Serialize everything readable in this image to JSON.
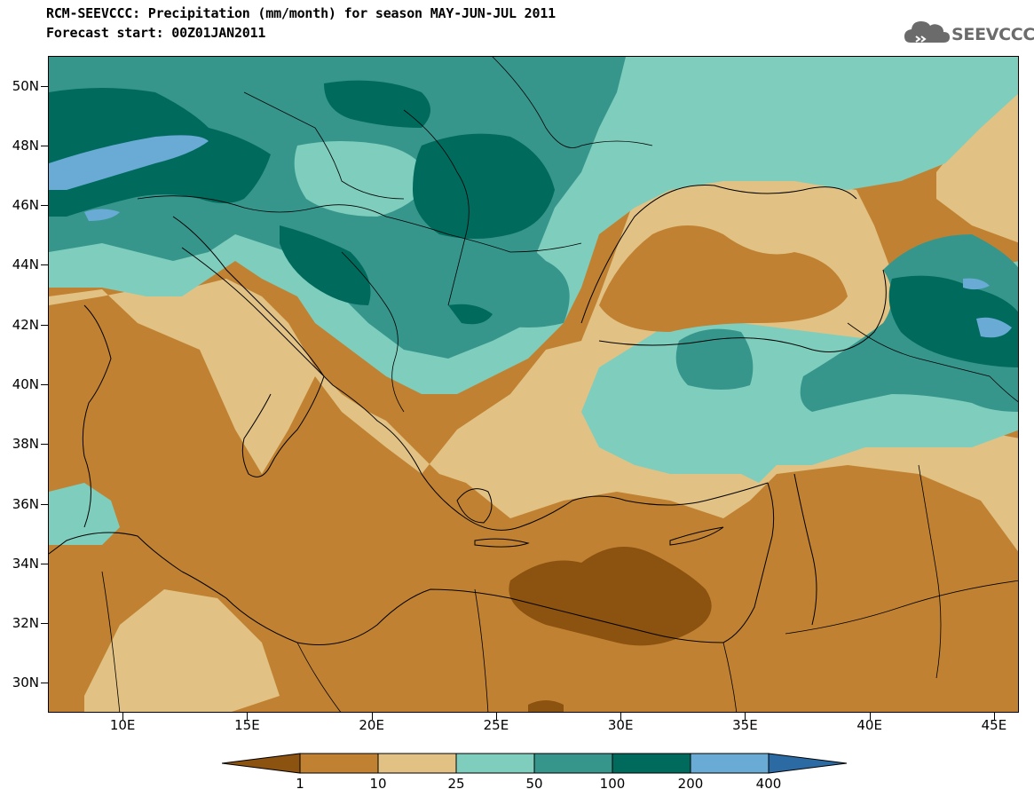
{
  "title": {
    "line1": "RCM-SEEVCCC: Precipitation (mm/month) for season MAY-JUN-JUL 2011",
    "line2": "Forecast start: 00Z01JAN2011"
  },
  "logo": {
    "text": "SEEVCCC",
    "icon": "cloud-icon",
    "color": "#6b6b6b"
  },
  "map": {
    "lat_labels": [
      "50N",
      "48N",
      "46N",
      "44N",
      "42N",
      "40N",
      "38N",
      "36N",
      "34N",
      "32N",
      "30N"
    ],
    "lon_labels": [
      "10E",
      "15E",
      "20E",
      "25E",
      "30E",
      "35E",
      "40E",
      "45E"
    ],
    "lat_range": [
      29,
      51
    ],
    "lon_range": [
      7,
      46
    ]
  },
  "legend": {
    "labels": [
      "1",
      "10",
      "25",
      "50",
      "100",
      "200",
      "400"
    ],
    "colors": [
      "#8b5210",
      "#c08232",
      "#e2c284",
      "#7fcdbd",
      "#37968c",
      "#006a5c",
      "#6aabd6",
      "#2b6aa3"
    ]
  }
}
